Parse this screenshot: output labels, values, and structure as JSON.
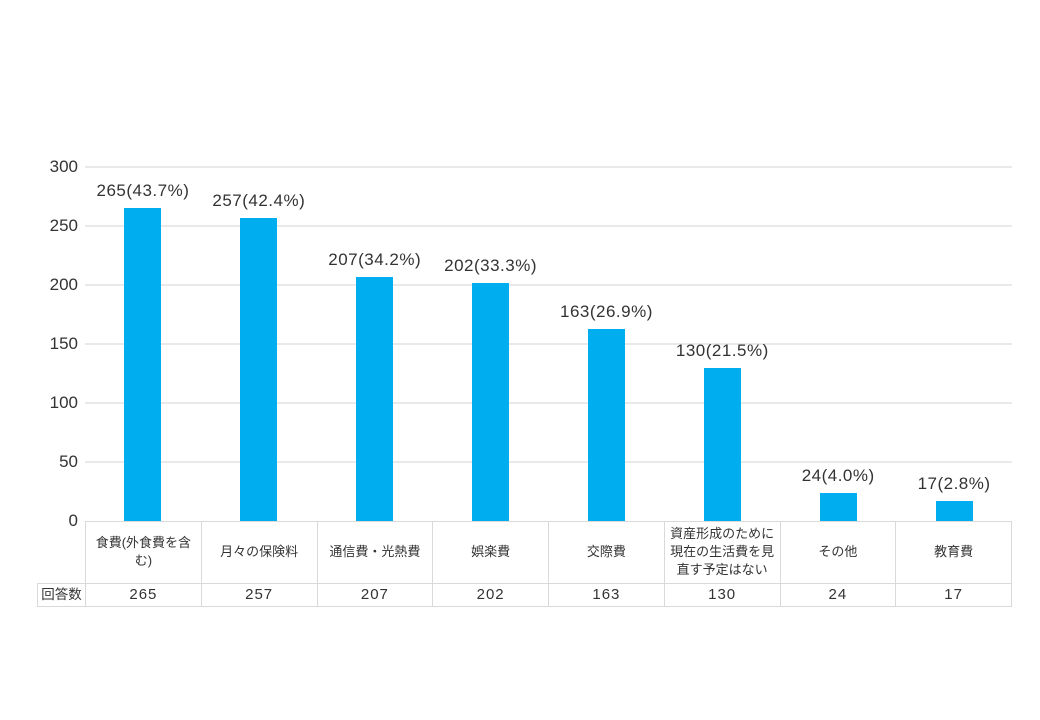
{
  "chart_data": {
    "type": "bar",
    "categories": [
      "食費(外食費を含む)",
      "月々の保険料",
      "通信費・光熱費",
      "娯楽費",
      "交際費",
      "資産形成のために現在の生活費を見直す予定はない",
      "その他",
      "教育費"
    ],
    "values": [
      265,
      257,
      207,
      202,
      163,
      130,
      24,
      17
    ],
    "bar_labels": [
      "265(43.7%)",
      "257(42.4%)",
      "207(34.2%)",
      "202(33.3%)",
      "163(26.9%)",
      "130(21.5%)",
      "24(4.0%)",
      "17(2.8%)"
    ],
    "title": "",
    "xlabel": "",
    "ylabel": "",
    "ylim": [
      0,
      300
    ],
    "yticks": [
      0,
      50,
      100,
      150,
      200,
      250,
      300
    ],
    "grid": true,
    "legend": false,
    "bar_color": "#00AEEF",
    "table_row_header": "回答数",
    "table_values": [
      "265",
      "257",
      "207",
      "202",
      "163",
      "130",
      "24",
      "17"
    ]
  },
  "colors": {
    "bar": "#00AEEF",
    "grid": "#e9e9ec",
    "table_border": "#d9d9d9",
    "text": "#333333",
    "background": "#ffffff"
  }
}
